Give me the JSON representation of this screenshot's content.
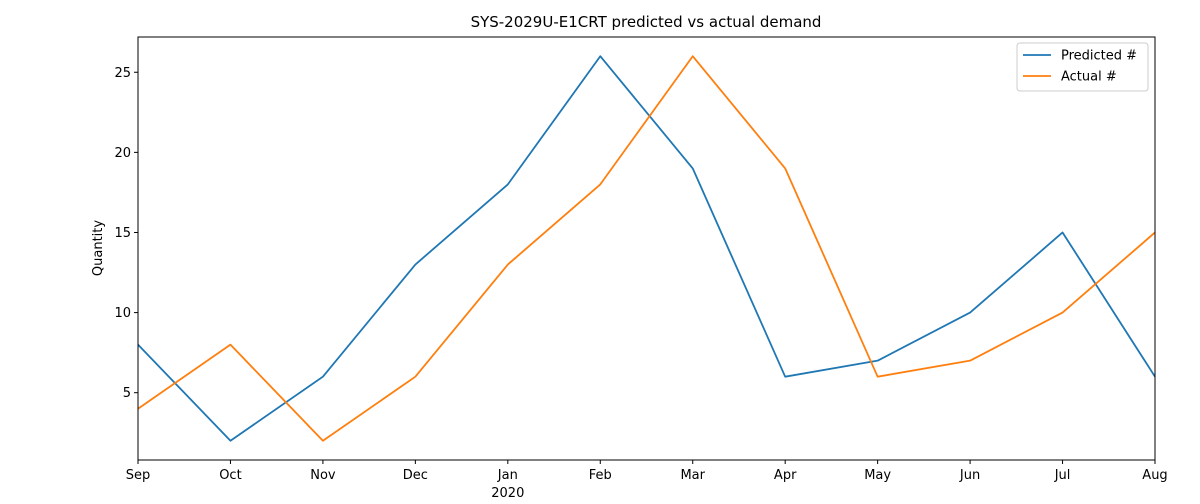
{
  "chart_data": {
    "type": "line",
    "title": "SYS-2029U-E1CRT predicted vs actual demand",
    "xlabel": "",
    "ylabel": "Quantity",
    "categories": [
      "Sep",
      "Oct",
      "Nov",
      "Dec",
      "Jan",
      "Feb",
      "Mar",
      "Apr",
      "May",
      "Jun",
      "Jul",
      "Aug"
    ],
    "year_label": "2020",
    "ylim": [
      0.8,
      27.2
    ],
    "yticks": [
      5,
      10,
      15,
      20,
      25
    ],
    "grid": false,
    "legend_position": "top-right",
    "series": [
      {
        "name": "Predicted #",
        "color": "#1f77b4",
        "values": [
          8,
          2,
          6,
          13,
          18,
          26,
          19,
          6,
          7,
          10,
          15,
          6
        ]
      },
      {
        "name": "Actual #",
        "color": "#ff7f0e",
        "values": [
          4,
          8,
          2,
          6,
          13,
          18,
          26,
          19,
          6,
          7,
          10,
          15
        ]
      }
    ]
  }
}
